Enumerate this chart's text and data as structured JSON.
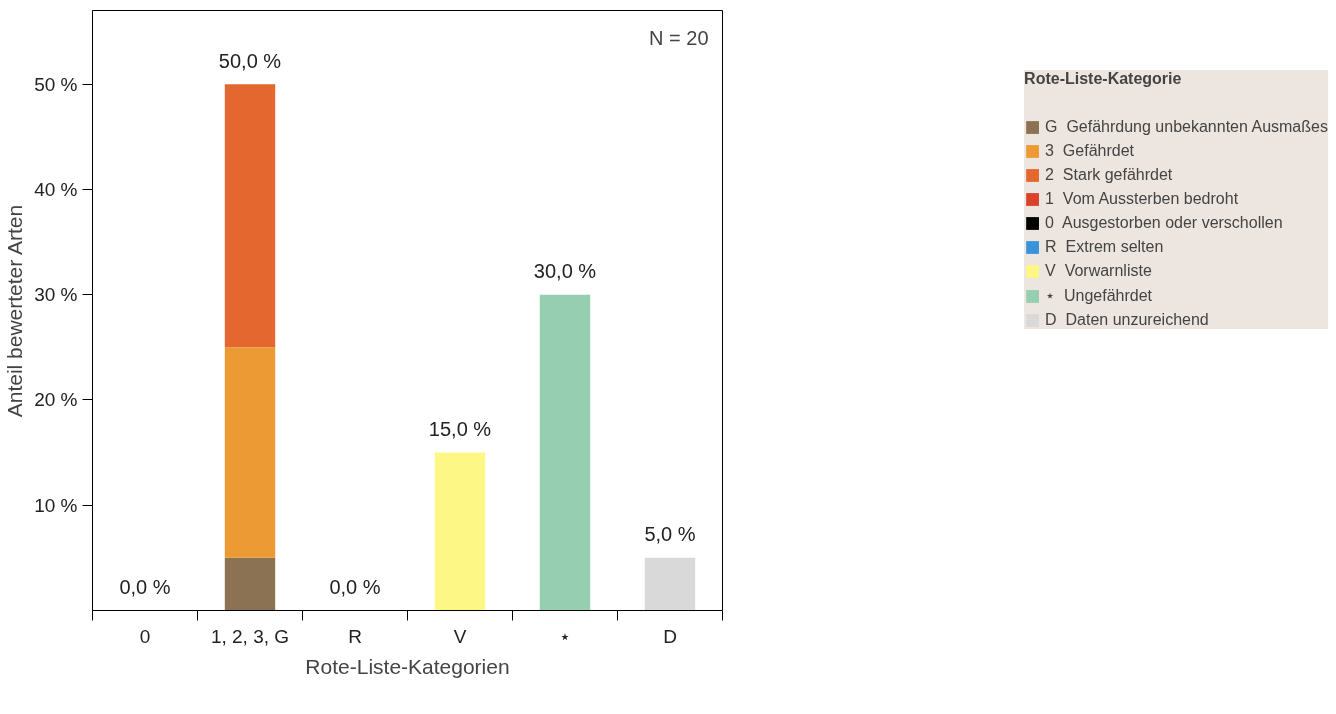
{
  "chart_data": {
    "type": "bar",
    "stacked": true,
    "xlabel": "Rote-Liste-Kategorien",
    "ylabel": "Anteil bewerteter Arten",
    "legend_title": "Rote-Liste-Kategorie",
    "categories": [
      "0",
      "1, 2, 3, G",
      "R",
      "V",
      "⋆",
      "D"
    ],
    "series": [
      {
        "name": "G  Gefährdung unbekannten Ausmaßes",
        "color": "#8a7252",
        "values": [
          0,
          5,
          0,
          0,
          0,
          0
        ]
      },
      {
        "name": "3  Gefährdet",
        "color": "#eb9a34",
        "values": [
          0,
          20,
          0,
          0,
          0,
          0
        ]
      },
      {
        "name": "2  Stark gefährdet",
        "color": "#e3672f",
        "values": [
          0,
          25,
          0,
          0,
          0,
          0
        ]
      },
      {
        "name": "1  Vom Aussterben bedroht",
        "color": "#d9412b",
        "values": [
          0,
          0,
          0,
          0,
          0,
          0
        ]
      },
      {
        "name": "0  Ausgestorben oder verschollen",
        "color": "#000000",
        "values": [
          0,
          0,
          0,
          0,
          0,
          0
        ]
      },
      {
        "name": "R  Extrem selten",
        "color": "#3a93d8",
        "values": [
          0,
          0,
          0,
          0,
          0,
          0
        ]
      },
      {
        "name": "V  Vorwarnliste",
        "color": "#fdf785",
        "values": [
          0,
          0,
          0,
          15,
          0,
          0
        ]
      },
      {
        "name": "⋆  Ungefährdet",
        "color": "#95ceb1",
        "values": [
          0,
          0,
          0,
          0,
          30,
          0
        ]
      },
      {
        "name": "D  Daten unzureichend",
        "color": "#d9d9d9",
        "values": [
          0,
          0,
          0,
          0,
          0,
          5
        ]
      }
    ],
    "totals": [
      "0,0 %",
      "50,0 %",
      "0,0 %",
      "15,0 %",
      "30,0 %",
      "5,0 %"
    ],
    "ylim": [
      0,
      57
    ],
    "yticks": [
      {
        "value": 10,
        "label": "10 %"
      },
      {
        "value": 20,
        "label": "20 %"
      },
      {
        "value": 30,
        "label": "30 %"
      },
      {
        "value": 40,
        "label": "40 %"
      },
      {
        "value": 50,
        "label": "50 %"
      }
    ],
    "annotations": [
      "N = 20"
    ],
    "grid": false,
    "legend": "right"
  }
}
